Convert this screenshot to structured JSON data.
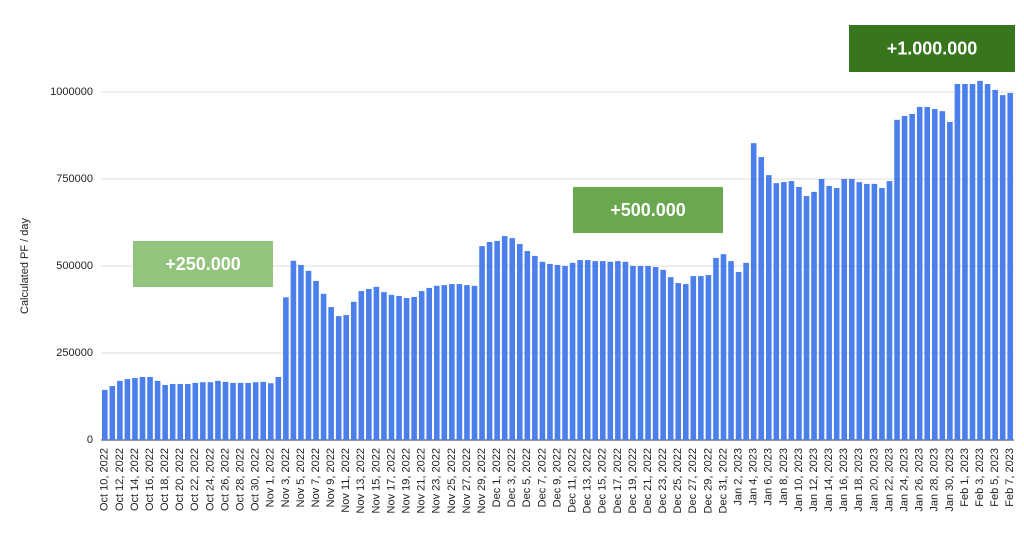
{
  "chart_data": {
    "type": "bar",
    "y_label": "Calculated PF / day",
    "color": "#4a7fec",
    "grid": true,
    "ylim": [
      0,
      1100000
    ],
    "yticks": [
      0,
      250000,
      500000,
      750000,
      1000000
    ],
    "categories": [
      "Oct 10, 2022",
      null,
      "Oct 12, 2022",
      null,
      "Oct 14, 2022",
      null,
      "Oct 16, 2022",
      null,
      "Oct 18, 2022",
      null,
      "Oct 20, 2022",
      null,
      "Oct 22, 2022",
      null,
      "Oct 24, 2022",
      null,
      "Oct 26, 2022",
      null,
      "Oct 28, 2022",
      null,
      "Oct 30, 2022",
      null,
      "Nov 1, 2022",
      null,
      "Nov 3, 2022",
      null,
      "Nov 5, 2022",
      null,
      "Nov 7, 2022",
      null,
      "Nov 9, 2022",
      null,
      "Nov 11, 2022",
      null,
      "Nov 13, 2022",
      null,
      "Nov 15, 2022",
      null,
      "Nov 17, 2022",
      null,
      "Nov 19, 2022",
      null,
      "Nov 21, 2022",
      null,
      "Nov 23, 2022",
      null,
      "Nov 25, 2022",
      null,
      "Nov 27, 2022",
      null,
      "Nov 29, 2022",
      null,
      "Dec 1, 2022",
      null,
      "Dec 3, 2022",
      null,
      "Dec 5, 2022",
      null,
      "Dec 7, 2022",
      null,
      "Dec 9, 2022",
      null,
      "Dec 11, 2022",
      null,
      "Dec 13, 2022",
      null,
      "Dec 15, 2022",
      null,
      "Dec 17, 2022",
      null,
      "Dec 19, 2022",
      null,
      "Dec 21, 2022",
      null,
      "Dec 23, 2022",
      null,
      "Dec 25, 2022",
      null,
      "Dec 27, 2022",
      null,
      "Dec 29, 2022",
      null,
      "Dec 31, 2022",
      null,
      "Jan 2, 2023",
      null,
      "Jan 4, 2023",
      null,
      "Jan 6, 2023",
      null,
      "Jan 8, 2023",
      null,
      "Jan 10, 2023",
      null,
      "Jan 12, 2023",
      null,
      "Jan 14, 2023",
      null,
      "Jan 16, 2023",
      null,
      "Jan 18, 2023",
      null,
      "Jan 20, 2023",
      null,
      "Jan 22, 2023",
      null,
      "Jan 24, 2023",
      null,
      "Jan 26, 2023",
      null,
      "Jan 28, 2023",
      null,
      "Jan 30, 2023",
      null,
      "Feb 1, 2023",
      null,
      "Feb 3, 2023",
      null,
      "Feb 5, 2023",
      null,
      "Feb 7, 2023"
    ],
    "values": [
      144000,
      155000,
      170000,
      175000,
      178000,
      181000,
      181000,
      170000,
      158000,
      161000,
      161000,
      161000,
      164000,
      166000,
      166000,
      170000,
      167000,
      164000,
      164000,
      164000,
      166000,
      167000,
      163000,
      181000,
      410000,
      515000,
      503000,
      486000,
      457000,
      420000,
      382000,
      356000,
      359000,
      397000,
      428000,
      434000,
      440000,
      425000,
      417000,
      414000,
      408000,
      411000,
      428000,
      437000,
      443000,
      445000,
      448000,
      448000,
      445000,
      443000,
      557000,
      569000,
      572000,
      586000,
      580000,
      563000,
      543000,
      529000,
      512000,
      506000,
      503000,
      500000,
      509000,
      517000,
      517000,
      514000,
      514000,
      512000,
      514000,
      512000,
      500000,
      500000,
      500000,
      497000,
      489000,
      468000,
      451000,
      448000,
      471000,
      471000,
      474000,
      523000,
      534000,
      514000,
      483000,
      509000,
      853000,
      813000,
      761000,
      738000,
      741000,
      744000,
      727000,
      701000,
      713000,
      750000,
      730000,
      724000,
      750000,
      750000,
      741000,
      736000,
      736000,
      724000,
      744000,
      920000,
      931000,
      937000,
      957000,
      957000,
      951000,
      945000,
      914000,
      1023000,
      1023000,
      1023000,
      1032000,
      1023000,
      1006000,
      991000,
      997000
    ],
    "annotations": [
      {
        "text": "+250.000",
        "color": "#93c47d"
      },
      {
        "text": "+500.000",
        "color": "#6aa84f"
      },
      {
        "text": "+1.000.000",
        "color": "#38761d"
      }
    ]
  }
}
